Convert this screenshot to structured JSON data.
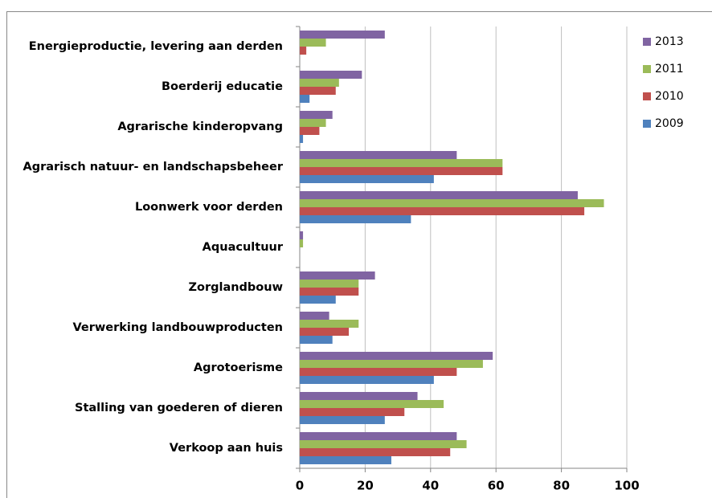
{
  "chart_data": {
    "type": "barh",
    "categories": [
      "Energieproductie, levering aan derden",
      "Boerderij educatie",
      "Agrarische kinderopvang",
      "Agrarisch natuur- en landschapsbeheer",
      "Loonwerk voor derden",
      "Aquacultuur",
      "Zorglandbouw",
      "Verwerking landbouwproducten",
      "Agrotoerisme",
      "Stalling van goederen of dieren",
      "Verkoop aan huis"
    ],
    "series": [
      {
        "name": "2013",
        "color": "#8064a2",
        "values": [
          26,
          19,
          10,
          48,
          85,
          1,
          23,
          9,
          59,
          36,
          48
        ]
      },
      {
        "name": "2011",
        "color": "#9bbb59",
        "values": [
          8,
          12,
          8,
          62,
          93,
          1,
          18,
          18,
          56,
          44,
          51
        ]
      },
      {
        "name": "2010",
        "color": "#c0504d",
        "values": [
          2,
          11,
          6,
          62,
          87,
          0,
          18,
          15,
          48,
          32,
          46
        ]
      },
      {
        "name": "2009",
        "color": "#4f81bd",
        "values": [
          0,
          3,
          1,
          41,
          34,
          0,
          11,
          10,
          41,
          26,
          28
        ]
      }
    ],
    "xlim": [
      0,
      100
    ],
    "xticks": [
      0,
      20,
      40,
      60,
      80,
      100
    ],
    "grid": true,
    "legend": "right"
  }
}
